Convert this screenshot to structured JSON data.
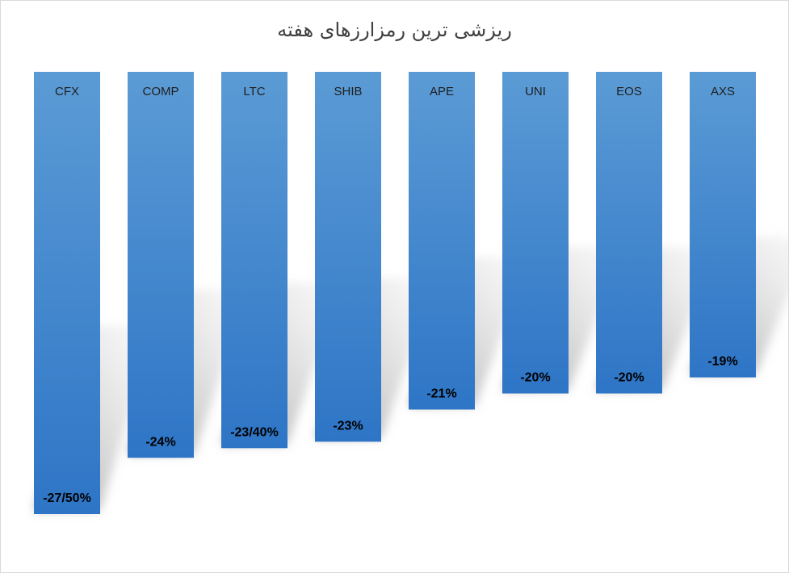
{
  "chart_data": {
    "type": "bar",
    "orientation": "vertical-downward",
    "title": "ریزشی ترین رمزارزهای هفته",
    "categories": [
      "CFX",
      "COMP",
      "LTC",
      "SHIB",
      "APE",
      "UNI",
      "EOS",
      "AXS"
    ],
    "values": [
      -27.5,
      -24,
      -23.4,
      -23,
      -21,
      -20,
      -20,
      -19
    ],
    "value_labels": [
      "-27/50%",
      "-24%",
      "-23/40%",
      "-23%",
      "-21%",
      "-20%",
      "-20%",
      "-19%"
    ],
    "ylim": [
      -28,
      0
    ],
    "grid": false,
    "legend": "none",
    "xlabel": "",
    "ylabel": "",
    "colors": {
      "bar_top": "#5b9bd5",
      "bar_bottom": "#2e75c6",
      "shadow": "#bfbfbf"
    }
  }
}
